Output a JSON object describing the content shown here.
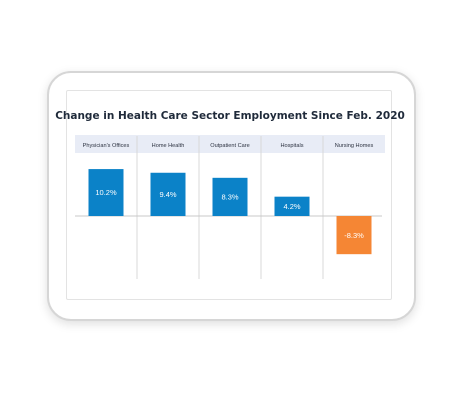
{
  "chart_data": {
    "type": "bar",
    "title": "Change in Health Care Sector Employment Since Feb. 2020",
    "categories": [
      "Physician's Offices",
      "Home Health",
      "Outpatient Care",
      "Hospitals",
      "Nursing Homes"
    ],
    "values": [
      10.2,
      9.4,
      8.3,
      4.2,
      -8.3
    ],
    "data_labels": [
      "10.2%",
      "9.4%",
      "8.3%",
      "4.2%",
      "-8.3%"
    ],
    "xlabel": "",
    "ylabel": "",
    "unit": "%",
    "ylim": [
      -9.5,
      11
    ],
    "grid": false,
    "legend": "none",
    "colors": {
      "positive": "#0b82c8",
      "negative": "#f58634",
      "header_band": "#e8ecf6",
      "divider": "#d8d8d8",
      "baseline": "#c8c8c8",
      "label_text": "#ffffff",
      "category_text": "#2c3240"
    }
  }
}
